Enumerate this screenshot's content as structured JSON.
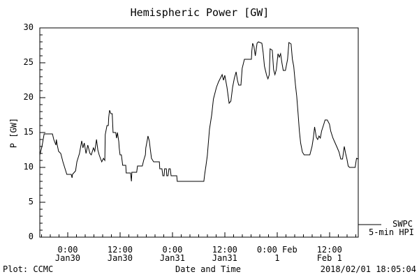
{
  "header": {
    "title": "Hemispheric Power [GW]"
  },
  "y_axis": {
    "label": "P [GW]"
  },
  "x_axis": {
    "label": "Date and Time"
  },
  "footer": {
    "plot_credit": "Plot: CCMC",
    "timestamp": "2018/02/01 18:05:04"
  },
  "legend": {
    "source": "SWPC",
    "series": "5-min HPI"
  },
  "colors": {
    "ink": "#000000",
    "background": "#ffffff"
  },
  "chart_data": {
    "type": "line",
    "title": "Hemispheric Power [GW]",
    "xlabel": "Date and Time",
    "ylabel": "P [GW]",
    "ylim": [
      0,
      30
    ],
    "y_major_ticks": [
      0,
      5,
      10,
      15,
      20,
      25,
      30
    ],
    "y_minor_step": 1,
    "x_hours_range": [
      0,
      73
    ],
    "x_minor_step_hours": 2,
    "x_minor_start_hour": 0.4,
    "grid": false,
    "line_color": "#000000",
    "legend_position": "outside-right-bottom",
    "x_major_ticks": [
      {
        "hour": 6.4,
        "time": "0:00",
        "date": "Jan30"
      },
      {
        "hour": 18.4,
        "time": "12:00",
        "date": "Jan30"
      },
      {
        "hour": 30.4,
        "time": "0:00",
        "date": "Jan31"
      },
      {
        "hour": 42.4,
        "time": "12:00",
        "date": "Jan31"
      },
      {
        "hour": 54.4,
        "time": "0:00",
        "date": "Feb 1"
      },
      {
        "hour": 66.4,
        "time": "12:00",
        "date": "Feb 1"
      }
    ],
    "series": [
      {
        "name": "SWPC 5-min HPI",
        "points": [
          [
            0,
            11.8
          ],
          [
            0.5,
            13
          ],
          [
            1,
            14.8
          ],
          [
            2.9,
            14.8
          ],
          [
            3.2,
            14
          ],
          [
            3.7,
            13.2
          ],
          [
            3.8,
            14
          ],
          [
            4,
            13.2
          ],
          [
            4.3,
            12.3
          ],
          [
            4.8,
            12
          ],
          [
            5.3,
            10.8
          ],
          [
            5.8,
            9.8
          ],
          [
            6.2,
            9
          ],
          [
            7.2,
            9
          ],
          [
            7.4,
            8.5
          ],
          [
            7.5,
            9
          ],
          [
            8.2,
            9.5
          ],
          [
            8.5,
            10.8
          ],
          [
            9.1,
            12
          ],
          [
            9.6,
            13.8
          ],
          [
            9.9,
            12.8
          ],
          [
            10.2,
            13.5
          ],
          [
            10.6,
            12
          ],
          [
            11,
            13.2
          ],
          [
            11.5,
            12
          ],
          [
            11.8,
            11.8
          ],
          [
            12.3,
            12.8
          ],
          [
            12.6,
            12.3
          ],
          [
            13,
            14
          ],
          [
            13.3,
            12.5
          ],
          [
            13.6,
            11.8
          ],
          [
            13.9,
            11.3
          ],
          [
            14.2,
            10.8
          ],
          [
            14.6,
            11.3
          ],
          [
            14.9,
            11
          ],
          [
            15,
            14.7
          ],
          [
            15.4,
            16
          ],
          [
            15.7,
            16
          ],
          [
            15.8,
            17.2
          ],
          [
            16,
            18.2
          ],
          [
            16.3,
            17.7
          ],
          [
            16.6,
            17.7
          ],
          [
            16.8,
            15
          ],
          [
            17.4,
            15
          ],
          [
            17.6,
            14.2
          ],
          [
            17.8,
            15
          ],
          [
            18.1,
            13.7
          ],
          [
            18.2,
            12.8
          ],
          [
            18.4,
            11.8
          ],
          [
            18.7,
            11.8
          ],
          [
            19,
            10.3
          ],
          [
            19.7,
            10.3
          ],
          [
            19.8,
            9.2
          ],
          [
            20.8,
            9.2
          ],
          [
            21,
            8
          ],
          [
            21.1,
            9.3
          ],
          [
            22.2,
            9.3
          ],
          [
            22.4,
            10.2
          ],
          [
            23.5,
            10.2
          ],
          [
            23.8,
            11
          ],
          [
            24.2,
            11.8
          ],
          [
            24.3,
            12.8
          ],
          [
            24.6,
            13.8
          ],
          [
            24.8,
            14.5
          ],
          [
            25.1,
            13.8
          ],
          [
            25.3,
            12.8
          ],
          [
            25.6,
            11.3
          ],
          [
            26.1,
            10.8
          ],
          [
            27.4,
            10.8
          ],
          [
            27.5,
            9.8
          ],
          [
            28,
            9.8
          ],
          [
            28.2,
            8.8
          ],
          [
            28.5,
            8.8
          ],
          [
            28.6,
            9.8
          ],
          [
            29,
            9.8
          ],
          [
            29.1,
            8.8
          ],
          [
            29.4,
            8.8
          ],
          [
            29.6,
            9.8
          ],
          [
            29.9,
            9.8
          ],
          [
            30.1,
            8.8
          ],
          [
            31.4,
            8.8
          ],
          [
            31.5,
            8
          ],
          [
            37.6,
            8
          ],
          [
            37.8,
            9
          ],
          [
            38.1,
            10.3
          ],
          [
            38.4,
            11.7
          ],
          [
            38.6,
            13.2
          ],
          [
            38.9,
            15.5
          ],
          [
            39.4,
            17.5
          ],
          [
            39.8,
            19.8
          ],
          [
            40.5,
            21.5
          ],
          [
            41,
            22.3
          ],
          [
            41.4,
            22.8
          ],
          [
            41.8,
            23.3
          ],
          [
            42.1,
            22.5
          ],
          [
            42.4,
            23.2
          ],
          [
            42.9,
            21.5
          ],
          [
            43.4,
            19.2
          ],
          [
            43.8,
            19.5
          ],
          [
            44.2,
            21.5
          ],
          [
            44.6,
            22.8
          ],
          [
            45,
            23.7
          ],
          [
            45.3,
            22.5
          ],
          [
            45.6,
            21.8
          ],
          [
            46.1,
            21.8
          ],
          [
            46.4,
            24.2
          ],
          [
            46.9,
            25.5
          ],
          [
            48.5,
            25.5
          ],
          [
            48.6,
            26.7
          ],
          [
            48.8,
            27.8
          ],
          [
            49.1,
            27.3
          ],
          [
            49.4,
            26
          ],
          [
            49.8,
            27.8
          ],
          [
            50.1,
            28
          ],
          [
            50.9,
            27.8
          ],
          [
            51.2,
            26.5
          ],
          [
            51.5,
            24.5
          ],
          [
            52,
            23.2
          ],
          [
            52.3,
            22.7
          ],
          [
            52.6,
            23.3
          ],
          [
            52.8,
            27
          ],
          [
            53.3,
            26.8
          ],
          [
            53.6,
            24
          ],
          [
            53.9,
            23.3
          ],
          [
            54.2,
            24
          ],
          [
            54.6,
            26.3
          ],
          [
            54.9,
            25.8
          ],
          [
            55.2,
            26.3
          ],
          [
            55.5,
            25
          ],
          [
            55.8,
            23.9
          ],
          [
            56.3,
            23.9
          ],
          [
            56.8,
            25.5
          ],
          [
            57.1,
            27.9
          ],
          [
            57.6,
            27.7
          ],
          [
            57.9,
            25.5
          ],
          [
            58.2,
            24.5
          ],
          [
            58.6,
            21.9
          ],
          [
            58.9,
            20.2
          ],
          [
            59.2,
            17.8
          ],
          [
            59.5,
            15.2
          ],
          [
            59.8,
            13.5
          ],
          [
            60.2,
            12.2
          ],
          [
            60.6,
            11.8
          ],
          [
            61.9,
            11.8
          ],
          [
            62.4,
            13
          ],
          [
            62.7,
            14.2
          ],
          [
            63,
            15.8
          ],
          [
            63.4,
            14.3
          ],
          [
            63.7,
            14
          ],
          [
            64,
            14.5
          ],
          [
            64.3,
            14.2
          ],
          [
            64.6,
            15.2
          ],
          [
            65.1,
            16.2
          ],
          [
            65.4,
            16.8
          ],
          [
            65.9,
            16.8
          ],
          [
            66.4,
            16.2
          ],
          [
            66.7,
            15.2
          ],
          [
            67.2,
            14.2
          ],
          [
            67.7,
            13.5
          ],
          [
            68.2,
            12.8
          ],
          [
            68.6,
            12.2
          ],
          [
            69,
            11.2
          ],
          [
            69.4,
            11.2
          ],
          [
            69.8,
            13
          ],
          [
            70.1,
            12
          ],
          [
            70.4,
            11.2
          ],
          [
            70.7,
            10.2
          ],
          [
            71,
            10
          ],
          [
            72.3,
            10
          ],
          [
            72.6,
            11.3
          ],
          [
            73,
            11.2
          ]
        ]
      }
    ]
  }
}
